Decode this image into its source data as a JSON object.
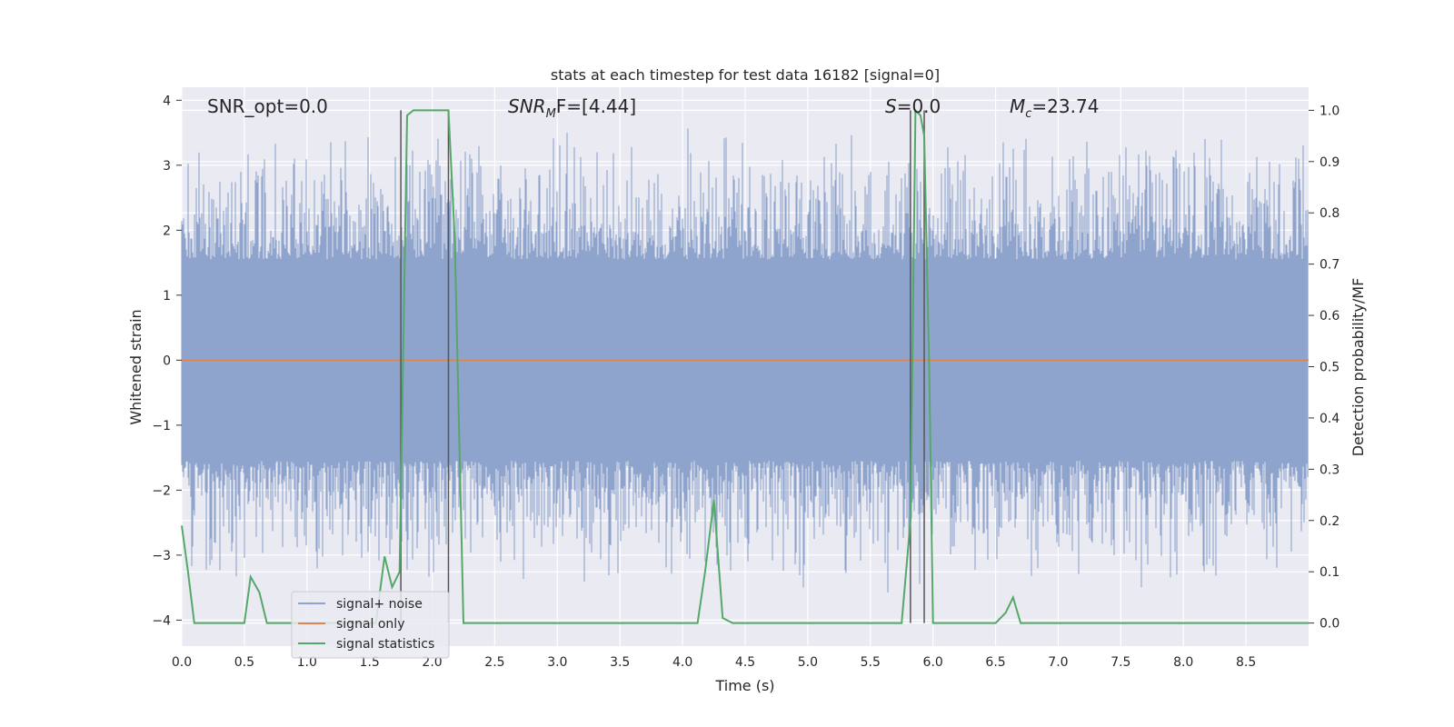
{
  "chart_data": {
    "type": "line",
    "title": "stats at each timestep for test data 16182 [signal=0]",
    "xlabel": "Time (s)",
    "ylabel": "Whitened strain",
    "ylabel_right": "Detection probability/MF",
    "xlim": [
      0,
      9.0
    ],
    "ylim": [
      -4.4,
      4.2
    ],
    "ylim_right": [
      -0.045,
      1.045
    ],
    "xticks": [
      "0.0",
      "0.5",
      "1.0",
      "1.5",
      "2.0",
      "2.5",
      "3.0",
      "3.5",
      "4.0",
      "4.5",
      "5.0",
      "5.5",
      "6.0",
      "6.5",
      "7.0",
      "7.5",
      "8.0",
      "8.5"
    ],
    "yticks_left": [
      "4",
      "3",
      "2",
      "1",
      "0",
      "−1",
      "−2",
      "−3",
      "−4"
    ],
    "yticks_right": [
      "1.0",
      "0.9",
      "0.8",
      "0.7",
      "0.6",
      "0.5",
      "0.4",
      "0.3",
      "0.2",
      "0.1",
      "0.0"
    ],
    "grid": true,
    "legend_placement": "lower-left",
    "annotations": {
      "snr_opt": "SNR_opt=0.0",
      "snr_mf_main": "SNR",
      "snr_mf_sub": "M",
      "snr_mf_rest": "F=[4.44]",
      "s_main": "S",
      "s_rest": "=0.0",
      "mc_main": "M",
      "mc_sub": "c",
      "mc_rest": "=23.74"
    },
    "series": [
      {
        "name": "signal+ noise",
        "color": "#8fa4cc",
        "style": "noise band",
        "approx_range": [
          -2.5,
          2.5
        ]
      },
      {
        "name": "signal only",
        "color": "#dd8452",
        "values_constant": 0
      },
      {
        "name": "signal statistics",
        "color": "#55a868",
        "axis": "right",
        "x": [
          0.0,
          0.05,
          0.1,
          0.15,
          0.2,
          0.3,
          0.4,
          0.5,
          0.55,
          0.62,
          0.68,
          0.75,
          0.85,
          1.0,
          1.2,
          1.4,
          1.55,
          1.62,
          1.68,
          1.74,
          1.8,
          1.85,
          1.9,
          2.0,
          2.1,
          2.13,
          2.18,
          2.25,
          2.3,
          2.5,
          3.0,
          3.5,
          4.0,
          4.12,
          4.18,
          4.25,
          4.32,
          4.4,
          4.5,
          5.0,
          5.5,
          5.75,
          5.82,
          5.86,
          5.9,
          5.93,
          5.97,
          6.0,
          6.2,
          6.5,
          6.58,
          6.64,
          6.7,
          6.8,
          7.0,
          7.5,
          8.0,
          8.5,
          9.0
        ],
        "y": [
          0.19,
          0.1,
          0.0,
          0.0,
          0.0,
          0.0,
          0.0,
          0.0,
          0.09,
          0.06,
          0.0,
          0.0,
          0.0,
          0.0,
          0.0,
          0.0,
          0.0,
          0.13,
          0.07,
          0.1,
          0.99,
          1.0,
          1.0,
          1.0,
          1.0,
          1.0,
          0.75,
          0.0,
          0.0,
          0.0,
          0.0,
          0.0,
          0.0,
          0.0,
          0.1,
          0.24,
          0.01,
          0.0,
          0.0,
          0.0,
          0.0,
          0.0,
          0.2,
          1.0,
          0.99,
          0.95,
          0.5,
          0.0,
          0.0,
          0.0,
          0.02,
          0.05,
          0.0,
          0.0,
          0.0,
          0.0,
          0.0,
          0.0,
          0.0
        ]
      }
    ],
    "vlines": [
      1.75,
      2.13,
      5.82,
      5.93
    ]
  }
}
